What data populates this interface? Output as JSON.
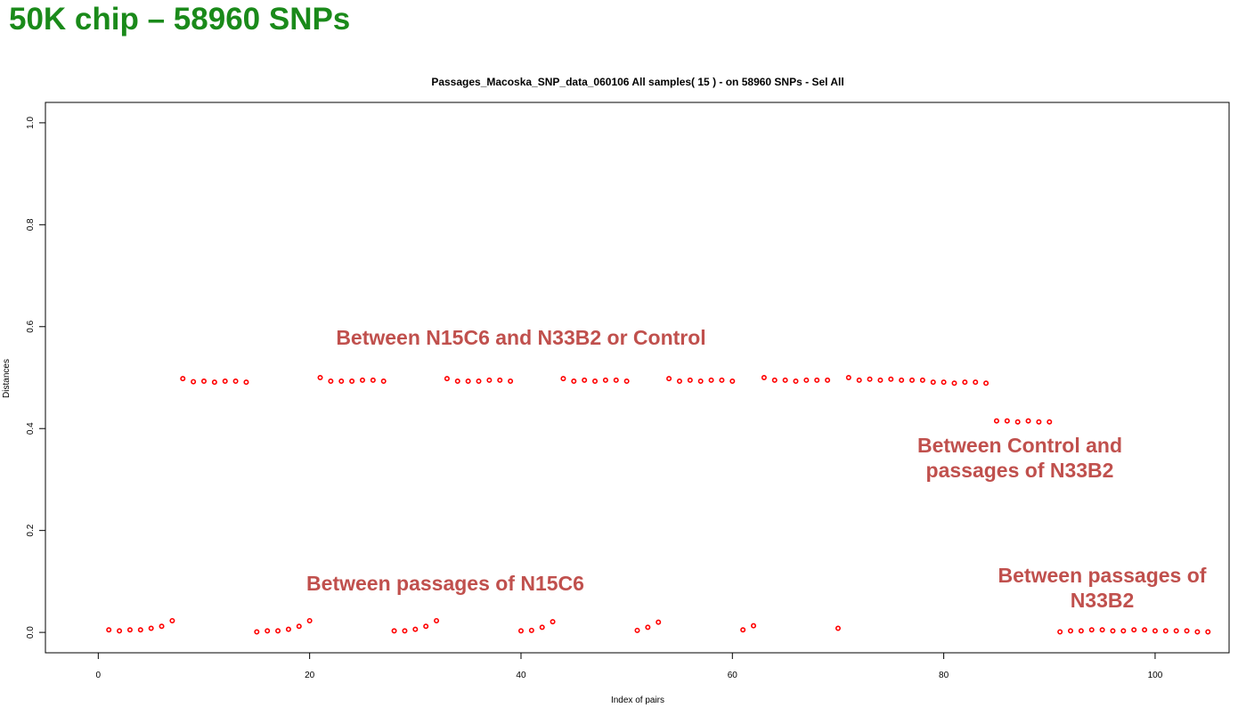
{
  "slide_title": "50K chip – 58960 SNPs",
  "chart_data": {
    "type": "scatter",
    "title": "Passages_Macoska_SNP_data_060106  All samples( 15 ) - on  58960 SNPs - Sel All",
    "xlabel": "Index of pairs",
    "ylabel": "Distances",
    "xlim": [
      -5,
      107
    ],
    "ylim": [
      -0.04,
      1.04
    ],
    "xticks": [
      0,
      20,
      40,
      60,
      80,
      100
    ],
    "yticks": [
      0.0,
      0.2,
      0.4,
      0.6,
      0.8,
      1.0
    ],
    "xtick_labels": [
      "0",
      "20",
      "40",
      "60",
      "80",
      "100"
    ],
    "ytick_labels": [
      "0.0",
      "0.2",
      "0.4",
      "0.6",
      "0.8",
      "1.0"
    ],
    "grid": false,
    "point_color": "#ff0000",
    "x": [
      1,
      2,
      3,
      4,
      5,
      6,
      7,
      8,
      9,
      10,
      11,
      12,
      13,
      14,
      15,
      16,
      17,
      18,
      19,
      20,
      21,
      22,
      23,
      24,
      25,
      26,
      27,
      28,
      29,
      30,
      31,
      32,
      33,
      34,
      35,
      36,
      37,
      38,
      39,
      40,
      41,
      42,
      43,
      44,
      45,
      46,
      47,
      48,
      49,
      50,
      51,
      52,
      53,
      54,
      55,
      56,
      57,
      58,
      59,
      60,
      61,
      62,
      63,
      64,
      65,
      66,
      67,
      68,
      69,
      70,
      71,
      72,
      73,
      74,
      75,
      76,
      77,
      78,
      79,
      80,
      81,
      82,
      83,
      84,
      85,
      86,
      87,
      88,
      89,
      90,
      91,
      92,
      93,
      94,
      95,
      96,
      97,
      98,
      99,
      100,
      101,
      102,
      103,
      104,
      105
    ],
    "y": [
      0.005,
      0.003,
      0.005,
      0.005,
      0.008,
      0.012,
      0.023,
      0.498,
      0.492,
      0.493,
      0.491,
      0.493,
      0.493,
      0.491,
      0.001,
      0.003,
      0.003,
      0.006,
      0.012,
      0.023,
      0.5,
      0.493,
      0.493,
      0.493,
      0.495,
      0.495,
      0.493,
      0.003,
      0.003,
      0.006,
      0.012,
      0.023,
      0.498,
      0.493,
      0.493,
      0.493,
      0.495,
      0.495,
      0.493,
      0.003,
      0.004,
      0.01,
      0.021,
      0.498,
      0.493,
      0.495,
      0.493,
      0.495,
      0.495,
      0.493,
      0.004,
      0.01,
      0.02,
      0.498,
      0.493,
      0.495,
      0.493,
      0.495,
      0.495,
      0.493,
      0.005,
      0.013,
      0.5,
      0.495,
      0.495,
      0.493,
      0.495,
      0.495,
      0.495,
      0.008,
      0.5,
      0.495,
      0.497,
      0.495,
      0.497,
      0.495,
      0.495,
      0.495,
      0.491,
      0.491,
      0.489,
      0.491,
      0.491,
      0.489,
      0.415,
      0.415,
      0.413,
      0.415,
      0.413,
      0.413,
      0.001,
      0.003,
      0.003,
      0.005,
      0.005,
      0.003,
      0.003,
      0.005,
      0.005,
      0.003,
      0.003,
      0.003,
      0.003,
      0.001,
      0.001
    ],
    "annotations": [
      {
        "text": "Between N15C6 and N33B2 or Control"
      },
      {
        "text": "Between Control and\npassages of N33B2"
      },
      {
        "text": "Between passages of N15C6"
      },
      {
        "text": "Between passages of\nN33B2"
      }
    ]
  }
}
